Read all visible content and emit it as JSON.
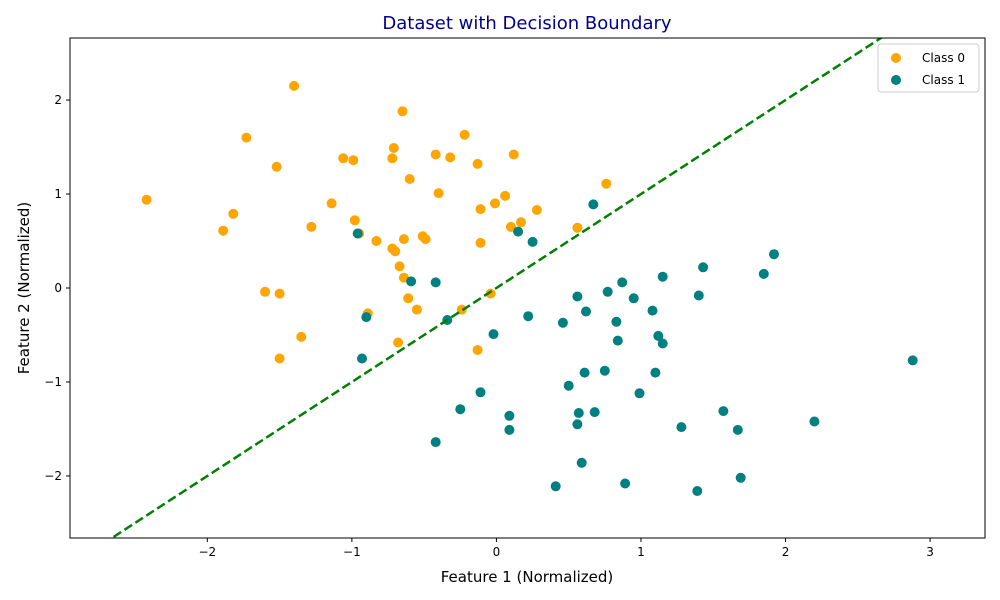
{
  "chart_data": {
    "type": "scatter",
    "title": "Dataset with Decision Boundary",
    "title_color": "#00008b",
    "xlabel": "Feature 1 (Normalized)",
    "ylabel": "Feature 2 (Normalized)",
    "xlim": [
      -2.95,
      3.38
    ],
    "ylim": [
      -2.66,
      2.66
    ],
    "xticks": [
      -2,
      -1,
      0,
      1,
      2,
      3
    ],
    "yticks": [
      -2,
      -1,
      0,
      1,
      2
    ],
    "xtick_labels": [
      "−2",
      "−1",
      "0",
      "1",
      "2",
      "3"
    ],
    "ytick_labels": [
      "−2",
      "−1",
      "0",
      "1",
      "2"
    ],
    "grid": false,
    "legend_position": "top-right",
    "decision_boundary": {
      "slope": 1.0,
      "intercept": 0.0,
      "color": "#008000",
      "style": "dashed"
    },
    "series": [
      {
        "name": "Class 0",
        "color": "#ffa500",
        "points": [
          [
            -2.42,
            0.94
          ],
          [
            -1.89,
            0.61
          ],
          [
            -1.82,
            0.79
          ],
          [
            -1.73,
            1.6
          ],
          [
            -1.6,
            -0.04
          ],
          [
            -1.52,
            1.29
          ],
          [
            -1.5,
            -0.06
          ],
          [
            -1.5,
            -0.75
          ],
          [
            -1.4,
            2.15
          ],
          [
            -1.35,
            -0.52
          ],
          [
            -1.28,
            0.65
          ],
          [
            -1.14,
            0.9
          ],
          [
            -1.06,
            1.38
          ],
          [
            -0.99,
            1.36
          ],
          [
            -0.98,
            0.72
          ],
          [
            -0.95,
            0.58
          ],
          [
            -0.89,
            -0.27
          ],
          [
            -0.83,
            0.5
          ],
          [
            -0.72,
            1.38
          ],
          [
            -0.71,
            1.49
          ],
          [
            -0.72,
            0.42
          ],
          [
            -0.7,
            0.39
          ],
          [
            -0.68,
            -0.58
          ],
          [
            -0.67,
            0.23
          ],
          [
            -0.65,
            1.88
          ],
          [
            -0.64,
            0.52
          ],
          [
            -0.64,
            0.11
          ],
          [
            -0.61,
            -0.11
          ],
          [
            -0.6,
            1.16
          ],
          [
            -0.55,
            -0.23
          ],
          [
            -0.51,
            0.55
          ],
          [
            -0.49,
            0.52
          ],
          [
            -0.42,
            1.42
          ],
          [
            -0.4,
            1.01
          ],
          [
            -0.32,
            1.39
          ],
          [
            -0.24,
            -0.23
          ],
          [
            -0.22,
            1.63
          ],
          [
            -0.13,
            1.32
          ],
          [
            -0.13,
            -0.66
          ],
          [
            -0.11,
            0.84
          ],
          [
            -0.11,
            0.48
          ],
          [
            -0.04,
            -0.06
          ],
          [
            -0.01,
            0.9
          ],
          [
            0.06,
            0.98
          ],
          [
            0.1,
            0.65
          ],
          [
            0.12,
            1.42
          ],
          [
            0.17,
            0.7
          ],
          [
            0.28,
            0.83
          ],
          [
            0.56,
            0.64
          ],
          [
            0.76,
            1.11
          ]
        ]
      },
      {
        "name": "Class 1",
        "color": "#008080",
        "points": [
          [
            -0.96,
            0.58
          ],
          [
            -0.9,
            -0.31
          ],
          [
            -0.93,
            -0.75
          ],
          [
            -0.59,
            0.07
          ],
          [
            -0.42,
            0.06
          ],
          [
            -0.42,
            -1.64
          ],
          [
            -0.34,
            -0.34
          ],
          [
            -0.25,
            -1.29
          ],
          [
            -0.11,
            -1.11
          ],
          [
            -0.02,
            -0.49
          ],
          [
            0.09,
            -1.36
          ],
          [
            0.09,
            -1.51
          ],
          [
            0.15,
            0.6
          ],
          [
            0.22,
            -0.3
          ],
          [
            0.25,
            0.49
          ],
          [
            0.41,
            -2.11
          ],
          [
            0.46,
            -0.37
          ],
          [
            0.5,
            -1.04
          ],
          [
            0.56,
            -0.09
          ],
          [
            0.56,
            -1.45
          ],
          [
            0.57,
            -1.33
          ],
          [
            0.59,
            -1.86
          ],
          [
            0.61,
            -0.9
          ],
          [
            0.62,
            -0.25
          ],
          [
            0.67,
            0.89
          ],
          [
            0.68,
            -1.32
          ],
          [
            0.75,
            -0.88
          ],
          [
            0.77,
            -0.04
          ],
          [
            0.83,
            -0.36
          ],
          [
            0.84,
            -0.56
          ],
          [
            0.87,
            0.06
          ],
          [
            0.89,
            -2.08
          ],
          [
            0.95,
            -0.11
          ],
          [
            0.99,
            -1.12
          ],
          [
            1.08,
            -0.24
          ],
          [
            1.1,
            -0.9
          ],
          [
            1.12,
            -0.51
          ],
          [
            1.15,
            0.12
          ],
          [
            1.15,
            -0.59
          ],
          [
            1.28,
            -1.48
          ],
          [
            1.39,
            -2.16
          ],
          [
            1.4,
            -0.08
          ],
          [
            1.43,
            0.22
          ],
          [
            1.57,
            -1.31
          ],
          [
            1.67,
            -1.51
          ],
          [
            1.69,
            -2.02
          ],
          [
            1.85,
            0.15
          ],
          [
            1.92,
            0.36
          ],
          [
            2.2,
            -1.42
          ],
          [
            2.88,
            -0.77
          ]
        ]
      }
    ]
  }
}
